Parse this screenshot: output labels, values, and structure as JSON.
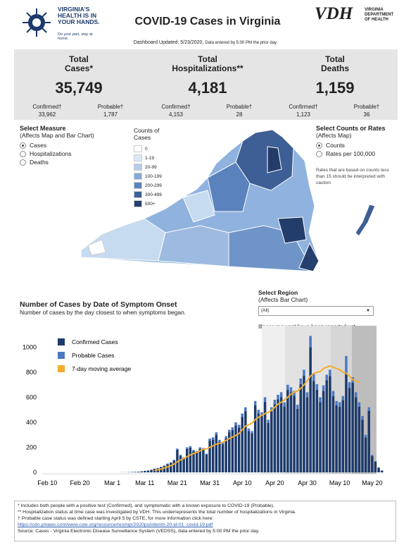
{
  "header": {
    "logo_text": "VIRGINIA'S HEALTH IS IN YOUR HANDS.",
    "logo_sub": "Do your part, stay at home.",
    "title": "COVID-19 Cases in Virginia",
    "vdh": "VDH",
    "vdh_sub": "VIRGINIA DEPARTMENT OF HEALTH",
    "updated": "Dashboard Updated: 5/23/2020,",
    "updated_note": "Data entered by 5:00 PM the prior day."
  },
  "stats": [
    {
      "title": "Total Cases*",
      "value": "35,749",
      "confirmed_label": "Confirmed†",
      "confirmed": "33,962",
      "probable_label": "Probable†",
      "probable": "1,787"
    },
    {
      "title": "Total Hospitalizations**",
      "value": "4,181",
      "confirmed_label": "Confirmed†",
      "confirmed": "4,153",
      "probable_label": "Probable†",
      "probable": "28"
    },
    {
      "title": "Total Deaths",
      "value": "1,159",
      "confirmed_label": "Confirmed†",
      "confirmed": "1,123",
      "probable_label": "Probable†",
      "probable": "36"
    }
  ],
  "measure": {
    "title": "Select Measure",
    "subtitle": "(Affects Map and Bar Chart)",
    "options": [
      "Cases",
      "Hospitalizations",
      "Deaths"
    ]
  },
  "map_legend": {
    "title": "Counts of Cases",
    "items": [
      "0",
      "1-19",
      "20-99",
      "100-199",
      "200-299",
      "300-499",
      "500+"
    ]
  },
  "rates": {
    "title": "Select Counts or Rates",
    "subtitle": "(Affects Map)",
    "options": [
      "Counts",
      "Rates per 100,000"
    ],
    "note": "Rates that are based on counts less than 15 should be interpreted with caution"
  },
  "region": {
    "title": "Select Region",
    "subtitle": "(Affects Bar Chart)",
    "selected": "(All)",
    "note": "Illness may not have been reported yet."
  },
  "chart_data": {
    "type": "bar",
    "stacked": true,
    "title": "Number of Cases by Date of Symptom Onset",
    "subtitle": "Number of cases by the day closest to when symptoms began.",
    "categories": [
      "Feb 10",
      null,
      null,
      null,
      null,
      null,
      null,
      null,
      null,
      null,
      "Feb 20",
      null,
      null,
      null,
      null,
      null,
      null,
      null,
      null,
      null,
      "Mar 1",
      null,
      null,
      null,
      null,
      null,
      null,
      null,
      null,
      null,
      "Mar 11",
      null,
      null,
      null,
      null,
      null,
      null,
      null,
      null,
      null,
      "Mar 21",
      null,
      null,
      null,
      null,
      null,
      null,
      null,
      null,
      null,
      "Mar 31",
      null,
      null,
      null,
      null,
      null,
      null,
      null,
      null,
      null,
      "Apr 10",
      null,
      null,
      null,
      null,
      null,
      null,
      null,
      null,
      null,
      "Apr 20",
      null,
      null,
      null,
      null,
      null,
      null,
      null,
      null,
      null,
      "Apr 30",
      null,
      null,
      null,
      null,
      null,
      null,
      null,
      null,
      null,
      "May 10",
      null,
      null,
      null,
      null,
      null,
      null,
      null,
      null,
      null,
      "May 20",
      null,
      null,
      null
    ],
    "series": [
      {
        "name": "Confirmed Cases",
        "color": "#1c3a6b",
        "values": [
          0,
          0,
          0,
          0,
          0,
          0,
          0,
          0,
          0,
          0,
          0,
          0,
          0,
          0,
          0,
          0,
          0,
          0,
          0,
          0,
          0,
          0,
          0,
          1,
          1,
          2,
          3,
          4,
          5,
          8,
          12,
          15,
          20,
          28,
          33,
          42,
          52,
          66,
          76,
          95,
          180,
          132,
          112,
          188,
          198,
          170,
          160,
          188,
          183,
          141,
          254,
          263,
          300,
          244,
          225,
          272,
          320,
          338,
          376,
          357,
          442,
          489,
          329,
          310,
          536,
          470,
          451,
          564,
          395,
          489,
          545,
          583,
          602,
          526,
          658,
          639,
          611,
          508,
          705,
          771,
          600,
          1000,
          730,
          660,
          560,
          650,
          735,
          770,
          610,
          535,
          525,
          575,
          790,
          675,
          715,
          600,
          525,
          420,
          280,
          490,
          130,
          85,
          38,
          14
        ]
      },
      {
        "name": "Probable Cases",
        "color": "#4b79c2",
        "values": [
          0,
          0,
          0,
          0,
          0,
          0,
          0,
          0,
          0,
          0,
          0,
          0,
          0,
          0,
          0,
          0,
          0,
          0,
          0,
          0,
          0,
          0,
          0,
          0,
          0,
          0,
          0,
          0,
          0,
          0,
          0,
          0,
          1,
          2,
          2,
          3,
          3,
          4,
          4,
          5,
          10,
          8,
          8,
          12,
          12,
          10,
          10,
          12,
          12,
          9,
          16,
          17,
          20,
          16,
          15,
          18,
          20,
          22,
          24,
          23,
          28,
          31,
          21,
          20,
          34,
          30,
          29,
          36,
          25,
          31,
          35,
          37,
          38,
          34,
          42,
          41,
          39,
          32,
          45,
          49,
          40,
          90,
          55,
          45,
          40,
          45,
          45,
          50,
          40,
          35,
          35,
          35,
          140,
          45,
          45,
          40,
          35,
          30,
          20,
          30,
          10,
          5,
          2,
          1
        ]
      },
      {
        "name": "7-day moving average",
        "type": "line",
        "color": "#f2ad2e",
        "values": [
          null,
          null,
          null,
          null,
          null,
          null,
          null,
          null,
          null,
          null,
          null,
          null,
          null,
          null,
          null,
          null,
          null,
          null,
          null,
          null,
          null,
          null,
          null,
          null,
          null,
          null,
          null,
          null,
          null,
          null,
          null,
          null,
          null,
          15,
          20,
          27,
          35,
          44,
          54,
          66,
          85,
          100,
          110,
          125,
          140,
          150,
          160,
          172,
          185,
          188,
          200,
          212,
          225,
          232,
          240,
          255,
          270,
          283,
          295,
          310,
          340,
          370,
          380,
          395,
          420,
          440,
          455,
          470,
          480,
          495,
          520,
          545,
          560,
          580,
          600,
          625,
          640,
          650,
          670,
          700,
          730,
          770,
          790,
          800,
          805,
          830,
          840,
          850,
          840,
          830,
          820,
          800,
          790,
          770,
          740,
          730,
          720,
          null,
          null,
          null,
          null,
          null,
          null,
          null
        ]
      }
    ],
    "ylim": [
      0,
      1160
    ],
    "yticks": [
      0,
      200,
      400,
      600,
      800,
      1000
    ],
    "grid": false,
    "legend": "top-left"
  },
  "footnotes": {
    "lines": [
      "* Includes both people with a positive test (Confirmed), and symptomatic with a known exposure to COVID-19 (Probable).",
      "** Hospitalization status at time case was investigated by VDH. This underrepresents the total number of hospitalizations in Virginia.",
      "† Probable case status was defined starting April 5 by CSTE, for more information click here:"
    ],
    "link": "https://cdn.ymaws.com/www.cste.org/resource/resmgr/2020ps/interim-20-id-01_covid-19.pdf",
    "source": "Source:  Cases - Virginia Electronic Disease Surveillance System (VEDSS), data entered by 5:00 PM the prior day."
  }
}
